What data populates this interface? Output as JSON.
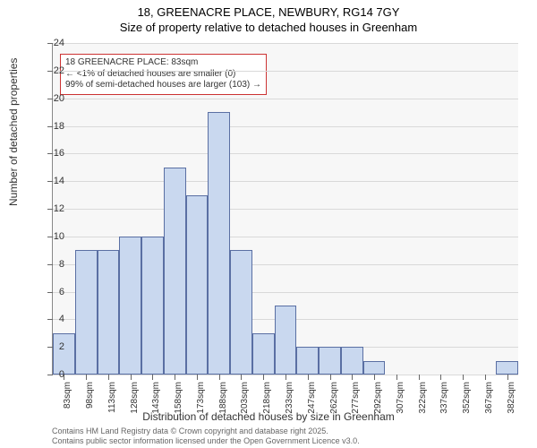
{
  "title": {
    "line1": "18, GREENACRE PLACE, NEWBURY, RG14 7GY",
    "line2": "Size of property relative to detached houses in Greenham"
  },
  "chart": {
    "type": "histogram",
    "bar_color": "#c9d8ef",
    "bar_border_color": "#5a6fa3",
    "background_color": "#f7f7f7",
    "grid_color": "#d9d9d9",
    "axis_color": "#888888",
    "ylim": [
      0,
      24
    ],
    "ytick_step": 2,
    "ylabel": "Number of detached properties",
    "xlabel": "Distribution of detached houses by size in Greenham",
    "categories": [
      "83sqm",
      "98sqm",
      "113sqm",
      "128sqm",
      "143sqm",
      "158sqm",
      "173sqm",
      "188sqm",
      "203sqm",
      "218sqm",
      "233sqm",
      "247sqm",
      "262sqm",
      "277sqm",
      "292sqm",
      "307sqm",
      "322sqm",
      "337sqm",
      "352sqm",
      "367sqm",
      "382sqm"
    ],
    "values": [
      3,
      9,
      9,
      10,
      10,
      15,
      13,
      19,
      9,
      3,
      5,
      2,
      2,
      2,
      1,
      0,
      0,
      0,
      0,
      0,
      1
    ],
    "title_fontsize": 13,
    "label_fontsize": 12,
    "tick_fontsize": 11
  },
  "callout": {
    "line1": "18 GREENACRE PLACE: 83sqm",
    "line2": "← <1% of detached houses are smaller (0)",
    "line3": "99% of semi-detached houses are larger (103) →",
    "border_color": "#cc3333"
  },
  "footer": {
    "line1": "Contains HM Land Registry data © Crown copyright and database right 2025.",
    "line2": "Contains public sector information licensed under the Open Government Licence v3.0."
  }
}
